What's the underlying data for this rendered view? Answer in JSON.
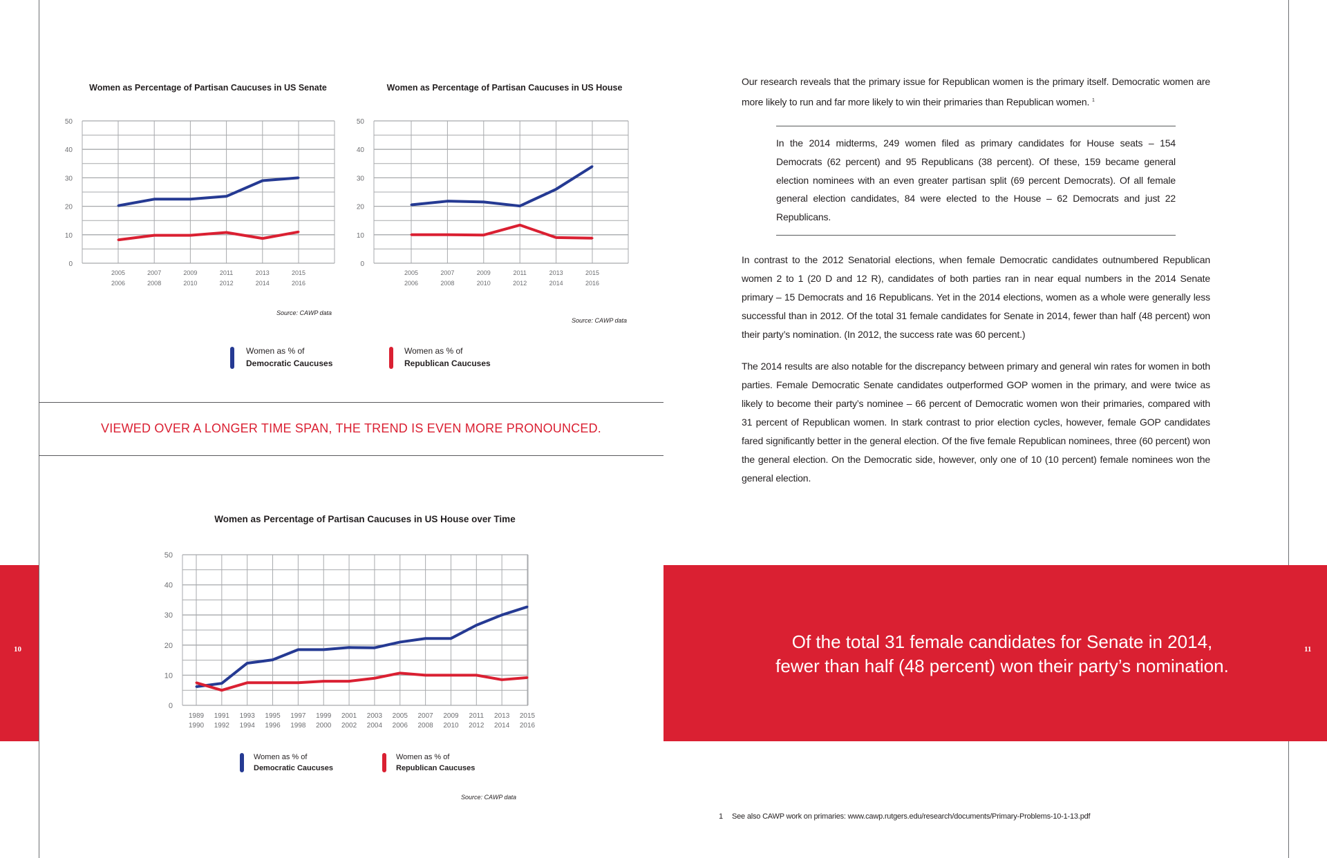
{
  "colors": {
    "accent_red": "#da2032",
    "democratic_blue": "#253a93",
    "republican_red": "#da2032",
    "grid": "#a7a9ac"
  },
  "left_page": {
    "page_number": "10",
    "callout": "VIEWED OVER A LONGER TIME SPAN, THE TREND IS EVEN MORE PRONOUNCED."
  },
  "right_page": {
    "page_number": "11",
    "paragraph_1": "Our research reveals that the primary issue for Republican women is the primary itself. Democratic women are more likely to run and far more likely to win their primaries than Republican women.",
    "paragraph_1_footnote_ref": "1",
    "boxed_text": "In the 2014 midterms, 249 women filed as primary candidates for House seats – 154 Democrats (62 percent) and 95 Republicans (38 percent). Of these, 159 became general election nominees with an even greater partisan split (69 percent Democrats). Of all female general election candidates, 84 were elected to the House – 62 Democrats and just 22 Republicans.",
    "paragraph_2": "In contrast to the 2012 Senatorial elections, when female Democratic candidates outnumbered Republican women 2 to 1 (20 D and 12 R), candidates of both parties ran in near equal numbers in the 2014 Senate primary – 15 Democrats and 16 Republicans. Yet in the 2014 elections, women as a whole were generally less successful than in 2012. Of the total 31 female candidates for Senate in 2014, fewer than half (48 percent) won their party’s nomination. (In 2012, the success rate was 60 percent.)",
    "paragraph_3": "The 2014 results are also notable for the discrepancy between primary and general win rates for women in both parties. Female Democratic Senate candidates outperformed GOP women in the primary, and were twice as likely to become their party’s nominee – 66 percent of Democratic women won their primaries, compared with 31 percent of Republican women. In stark contrast to prior election cycles, however, female GOP candidates fared significantly better in the general election. Of the five female Republican nominees, three (60 percent) won the general election. On the Democratic side, however, only one of 10 (10 percent) female nominees won the general election.",
    "pull_quote_line_1": "Of the total 31 female candidates for Senate in 2014,",
    "pull_quote_line_2": "fewer than half (48 percent) won their party’s nomination.",
    "footnote_number": "1",
    "footnote_text": "See also CAWP work on primaries: www.cawp.rutgers.edu/research/documents/Primary-Problems-10-1-13.pdf"
  },
  "chart_data": [
    {
      "type": "line",
      "title": "Women as Percentage of Partisan Caucuses in US Senate",
      "categories": [
        [
          "2005",
          "2006"
        ],
        [
          "2007",
          "2008"
        ],
        [
          "2009",
          "2010"
        ],
        [
          "2011",
          "2012"
        ],
        [
          "2013",
          "2014"
        ],
        [
          "2015",
          "2016"
        ]
      ],
      "ylim": [
        0,
        50
      ],
      "yticks": [
        "0",
        "10",
        "20",
        "30",
        "40",
        "50"
      ],
      "grid": true,
      "series": [
        {
          "name_lines": [
            "Women as % of",
            "Democratic Caucuses"
          ],
          "color": "#253a93",
          "values": [
            20.2,
            22.5,
            22.5,
            23.5,
            29,
            30
          ]
        },
        {
          "name_lines": [
            "Women as % of",
            "Republican Caucuses"
          ],
          "color": "#da2032",
          "values": [
            8.2,
            9.8,
            9.8,
            10.8,
            8.7,
            11
          ]
        }
      ],
      "source": "Source: CAWP data"
    },
    {
      "type": "line",
      "title": "Women as Percentage of Partisan Caucuses in US House",
      "categories": [
        [
          "2005",
          "2006"
        ],
        [
          "2007",
          "2008"
        ],
        [
          "2009",
          "2010"
        ],
        [
          "2011",
          "2012"
        ],
        [
          "2013",
          "2014"
        ],
        [
          "2015",
          "2016"
        ]
      ],
      "ylim": [
        0,
        50
      ],
      "yticks": [
        "0",
        "10",
        "20",
        "30",
        "40",
        "50"
      ],
      "grid": true,
      "series": [
        {
          "color": "#253a93",
          "values": [
            20.5,
            21.8,
            21.5,
            20.1,
            26,
            34
          ]
        },
        {
          "color": "#da2032",
          "values": [
            10,
            10,
            9.9,
            13.4,
            9,
            8.8
          ]
        }
      ],
      "source": "Source: CAWP data"
    },
    {
      "type": "line",
      "title": "Women as Percentage of Partisan Caucuses in US House over Time",
      "categories": [
        [
          "1989",
          "1990"
        ],
        [
          "1991",
          "1992"
        ],
        [
          "1993",
          "1994"
        ],
        [
          "1995",
          "1996"
        ],
        [
          "1997",
          "1998"
        ],
        [
          "1999",
          "2000"
        ],
        [
          "2001",
          "2002"
        ],
        [
          "2003",
          "2004"
        ],
        [
          "2005",
          "2006"
        ],
        [
          "2007",
          "2008"
        ],
        [
          "2009",
          "2010"
        ],
        [
          "2011",
          "2012"
        ],
        [
          "2013",
          "2014"
        ],
        [
          "2015",
          "2016"
        ]
      ],
      "ylim": [
        0,
        50
      ],
      "yticks": [
        "0",
        "10",
        "20",
        "30",
        "40",
        "50"
      ],
      "grid": true,
      "series": [
        {
          "name_lines": [
            "Women as % of",
            "Democratic Caucuses"
          ],
          "color": "#253a93",
          "values": [
            6.2,
            7.3,
            14,
            15.1,
            18.5,
            18.5,
            19.2,
            19.1,
            21,
            22.2,
            22.2,
            26.6,
            30,
            32.7
          ]
        },
        {
          "name_lines": [
            "Women as % of",
            "Republican Caucuses"
          ],
          "color": "#da2032",
          "values": [
            7.5,
            5,
            7.5,
            7.5,
            7.5,
            8,
            8,
            9,
            10.7,
            10,
            10,
            10,
            8.5,
            9.2
          ]
        }
      ],
      "source": "Source: CAWP data"
    }
  ]
}
